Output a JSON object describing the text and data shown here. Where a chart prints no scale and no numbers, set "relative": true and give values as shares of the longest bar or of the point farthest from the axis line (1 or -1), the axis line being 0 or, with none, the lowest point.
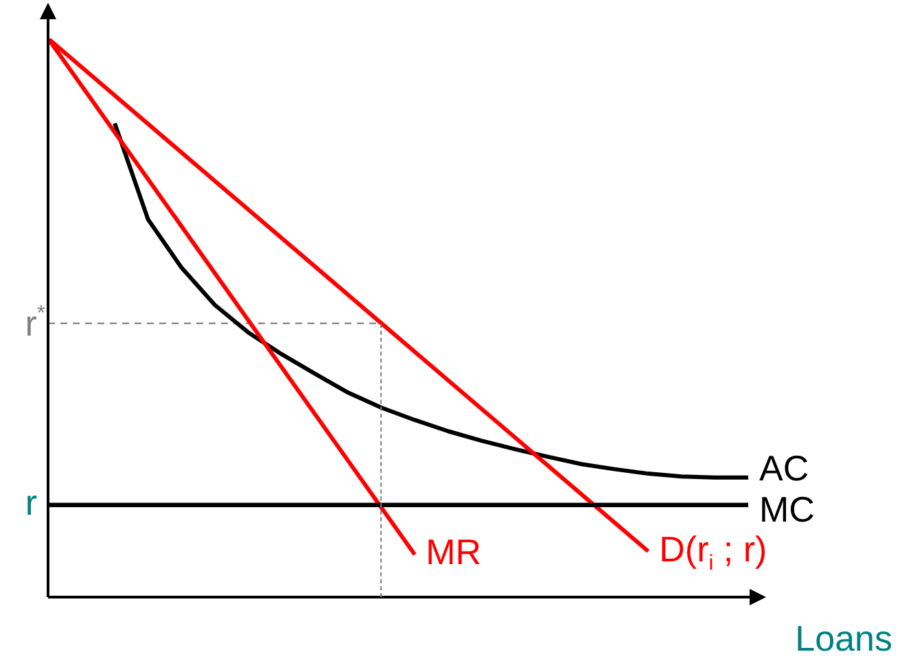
{
  "chart_data": {
    "type": "line",
    "relative": true,
    "xlabel": "Loans",
    "marker": "none",
    "categories": [
      null,
      null,
      null,
      null,
      null,
      null,
      null,
      null,
      null,
      null,
      null,
      null,
      null,
      null,
      null,
      null,
      null,
      null,
      null,
      null,
      null,
      null
    ],
    "series": [
      {
        "name": "D(r$_{i}$ ; r)",
        "color": "#ff0000",
        "values": [
          1,
          null,
          null,
          null,
          null,
          null,
          null,
          null,
          null,
          null,
          0.49,
          null,
          null,
          null,
          null,
          null,
          null,
          null,
          0.082,
          null,
          null,
          null
        ]
      },
      {
        "name": "MR",
        "color": "#ff0000",
        "values": [
          1,
          null,
          null,
          null,
          null,
          null,
          null,
          null,
          null,
          null,
          null,
          0.076,
          null,
          null,
          null,
          null,
          null,
          null,
          null,
          null,
          null,
          null
        ]
      },
      {
        "name": "AC",
        "color": "#000000",
        "values": [
          null,
          null,
          0.848,
          0.676,
          0.59,
          0.523,
          0.474,
          0.435,
          0.4,
          0.366,
          0.339,
          0.317,
          0.297,
          0.28,
          0.265,
          0.251,
          0.238,
          0.229,
          0.221,
          0.216,
          0.214,
          0.214
        ]
      },
      {
        "name": "MC",
        "color": "#000000",
        "values": [
          0.165,
          null,
          null,
          null,
          null,
          null,
          null,
          null,
          null,
          null,
          null,
          null,
          null,
          null,
          null,
          null,
          null,
          null,
          null,
          null,
          null,
          0.165
        ]
      },
      {
        "name": "r$^{*}$",
        "color": "#808080",
        "line_style": "dashed",
        "values": [
          0.49,
          null,
          null,
          null,
          null,
          null,
          null,
          null,
          null,
          null,
          0.49,
          null,
          null,
          null,
          null,
          null,
          null,
          null,
          null,
          null,
          null,
          null
        ]
      }
    ],
    "ref_lines": [
      {
        "axis": "y",
        "value": 0.165,
        "label": "r",
        "color": "#000000"
      }
    ]
  }
}
